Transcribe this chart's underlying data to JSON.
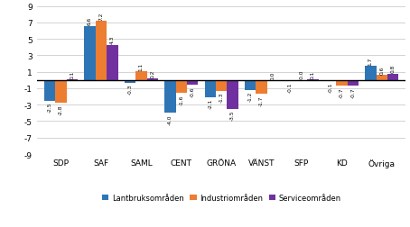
{
  "categories": [
    "SDP",
    "SAF",
    "SAML",
    "CENT",
    "GRÖNA",
    "VÄNST",
    "SFP",
    "KD",
    "Övriga"
  ],
  "lantbruk": [
    -2.5,
    6.6,
    -0.3,
    -4.0,
    -2.1,
    -1.2,
    -0.1,
    -0.1,
    1.7
  ],
  "industri": [
    -2.8,
    7.2,
    1.1,
    -1.6,
    -1.3,
    -1.7,
    -0.0,
    -0.7,
    0.6
  ],
  "service": [
    0.1,
    4.3,
    0.2,
    -0.6,
    -3.5,
    0.0,
    0.1,
    -0.7,
    0.8
  ],
  "lantbruk_labels": [
    "-2.5",
    "6.6",
    "-0.3",
    "-4.0",
    "-2.1",
    "-1.2",
    "-0.1",
    "-0.1",
    "1.7"
  ],
  "industri_labels": [
    "-2.8",
    "7.2",
    "1.1",
    "-1.6",
    "-1.3",
    "-1.7",
    "-0.0",
    "-0.7",
    "0.6"
  ],
  "service_labels": [
    "0.1",
    "4.3",
    "0.2",
    "-0.6",
    "-3.5",
    "0.0",
    "0.1",
    "-0.7",
    "0.8"
  ],
  "color_lantbruk": "#2E75B6",
  "color_industri": "#ED7D31",
  "color_service": "#7030A0",
  "ylim": [
    -9,
    9
  ],
  "yticks": [
    -9,
    -7,
    -5,
    -3,
    -1,
    1,
    3,
    5,
    7,
    9
  ],
  "legend_labels": [
    "Lantbruksområden",
    "Industriområden",
    "Serviceområden"
  ],
  "bar_width": 0.28,
  "bg_color": "#FFFFFF",
  "grid_color": "#CCCCCC"
}
